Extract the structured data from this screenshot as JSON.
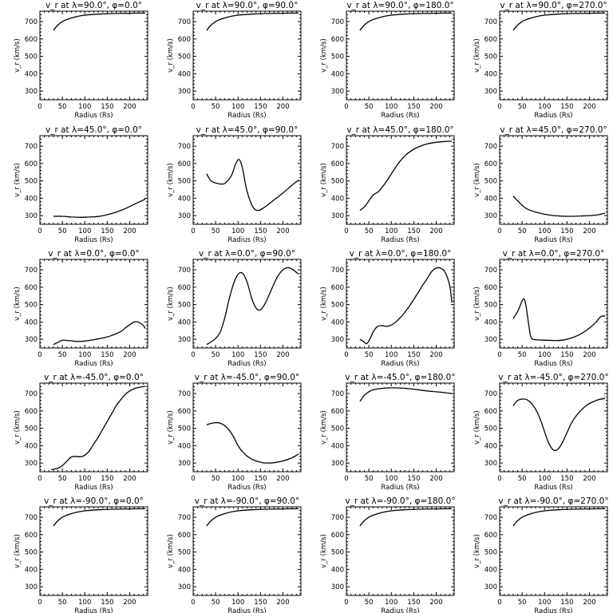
{
  "chart_data": [
    {
      "type": "line",
      "title": "v_r at λ=90.0°, φ=0.0°",
      "xlabel": "Radius (Rs)",
      "ylabel": "v_r (km/s)",
      "xlim": [
        0,
        240
      ],
      "ylim": [
        250,
        760
      ],
      "xticks": [
        0,
        50,
        100,
        150,
        200
      ],
      "yticks": [
        300,
        400,
        500,
        600,
        700
      ],
      "x": [
        30,
        40,
        50,
        60,
        80,
        100,
        130,
        160,
        200,
        235
      ],
      "y": [
        650,
        680,
        700,
        712,
        728,
        737,
        743,
        746,
        748,
        749
      ]
    },
    {
      "type": "line",
      "title": "v_r at λ=90.0°, φ=90.0°",
      "xlabel": "Radius (Rs)",
      "ylabel": "v_r (km/s)",
      "xlim": [
        0,
        240
      ],
      "ylim": [
        250,
        760
      ],
      "xticks": [
        0,
        50,
        100,
        150,
        200
      ],
      "yticks": [
        300,
        400,
        500,
        600,
        700
      ],
      "x": [
        30,
        40,
        50,
        60,
        80,
        100,
        130,
        160,
        200,
        235
      ],
      "y": [
        650,
        680,
        700,
        712,
        728,
        737,
        743,
        746,
        748,
        749
      ]
    },
    {
      "type": "line",
      "title": "v_r at λ=90.0°, φ=180.0°",
      "xlabel": "Radius (Rs)",
      "ylabel": "v_r (km/s)",
      "xlim": [
        0,
        240
      ],
      "ylim": [
        250,
        760
      ],
      "xticks": [
        0,
        50,
        100,
        150,
        200
      ],
      "yticks": [
        300,
        400,
        500,
        600,
        700
      ],
      "x": [
        30,
        40,
        50,
        60,
        80,
        100,
        130,
        160,
        200,
        235
      ],
      "y": [
        650,
        680,
        700,
        712,
        728,
        737,
        743,
        746,
        748,
        749
      ]
    },
    {
      "type": "line",
      "title": "v_r at λ=90.0°, φ=270.0°",
      "xlabel": "Radius (Rs)",
      "ylabel": "v_r (km/s)",
      "xlim": [
        0,
        240
      ],
      "ylim": [
        250,
        760
      ],
      "xticks": [
        0,
        50,
        100,
        150,
        200
      ],
      "yticks": [
        300,
        400,
        500,
        600,
        700
      ],
      "x": [
        30,
        40,
        50,
        60,
        80,
        100,
        130,
        160,
        200,
        235
      ],
      "y": [
        650,
        680,
        700,
        712,
        728,
        737,
        743,
        746,
        748,
        749
      ]
    },
    {
      "type": "line",
      "title": "v_r at λ=45.0°, φ=0.0°",
      "xlabel": "Radius (Rs)",
      "ylabel": "v_r (km/s)",
      "xlim": [
        0,
        240
      ],
      "ylim": [
        250,
        760
      ],
      "xticks": [
        0,
        50,
        100,
        150,
        200
      ],
      "yticks": [
        300,
        400,
        500,
        600,
        700
      ],
      "x": [
        30,
        50,
        70,
        90,
        110,
        130,
        150,
        170,
        190,
        210,
        235
      ],
      "y": [
        296,
        296,
        292,
        290,
        292,
        295,
        305,
        320,
        340,
        365,
        395
      ]
    },
    {
      "type": "line",
      "title": "v_r at λ=45.0°, φ=90.0°",
      "xlabel": "Radius (Rs)",
      "ylabel": "v_r (km/s)",
      "xlim": [
        0,
        240
      ],
      "ylim": [
        250,
        760
      ],
      "xticks": [
        0,
        50,
        100,
        150,
        200
      ],
      "yticks": [
        300,
        400,
        500,
        600,
        700
      ],
      "x": [
        30,
        40,
        55,
        70,
        85,
        95,
        103,
        110,
        120,
        133,
        145,
        160,
        180,
        200,
        220,
        235
      ],
      "y": [
        540,
        500,
        485,
        485,
        530,
        600,
        622,
        570,
        440,
        350,
        330,
        350,
        390,
        430,
        475,
        505
      ]
    },
    {
      "type": "line",
      "title": "v_r at λ=45.0°, φ=180.0°",
      "xlabel": "Radius (Rs)",
      "ylabel": "v_r (km/s)",
      "xlim": [
        0,
        240
      ],
      "ylim": [
        250,
        760
      ],
      "xticks": [
        0,
        50,
        100,
        150,
        200
      ],
      "yticks": [
        300,
        400,
        500,
        600,
        700
      ],
      "x": [
        30,
        40,
        50,
        60,
        70,
        80,
        90,
        100,
        110,
        120,
        135,
        150,
        165,
        180,
        200,
        220,
        235
      ],
      "y": [
        330,
        350,
        385,
        420,
        435,
        465,
        500,
        540,
        580,
        615,
        655,
        682,
        700,
        713,
        722,
        727,
        728
      ]
    },
    {
      "type": "line",
      "title": "v_r at λ=45.0°, φ=270.0°",
      "xlabel": "Radius (Rs)",
      "ylabel": "v_r (km/s)",
      "xlim": [
        0,
        240
      ],
      "ylim": [
        250,
        760
      ],
      "xticks": [
        0,
        50,
        100,
        150,
        200
      ],
      "yticks": [
        300,
        400,
        500,
        600,
        700
      ],
      "x": [
        30,
        40,
        50,
        60,
        80,
        100,
        120,
        140,
        160,
        180,
        200,
        220,
        235
      ],
      "y": [
        412,
        385,
        360,
        340,
        320,
        308,
        300,
        297,
        296,
        298,
        300,
        305,
        315
      ]
    },
    {
      "type": "line",
      "title": "v_r at λ=0.0°, φ=0.0°",
      "xlabel": "Radius (Rs)",
      "ylabel": "v_r (km/s)",
      "xlim": [
        0,
        240
      ],
      "ylim": [
        250,
        760
      ],
      "xticks": [
        0,
        50,
        100,
        150,
        200
      ],
      "yticks": [
        300,
        400,
        500,
        600,
        700
      ],
      "x": [
        30,
        40,
        50,
        60,
        70,
        80,
        100,
        120,
        140,
        160,
        180,
        195,
        210,
        220,
        230,
        235
      ],
      "y": [
        270,
        282,
        295,
        293,
        292,
        288,
        290,
        298,
        308,
        322,
        345,
        375,
        400,
        398,
        380,
        362
      ]
    },
    {
      "type": "line",
      "title": "v_r at λ=0.0°, φ=90.0°",
      "xlabel": "Radius (Rs)",
      "ylabel": "v_r (km/s)",
      "xlim": [
        0,
        240
      ],
      "ylim": [
        250,
        760
      ],
      "xticks": [
        0,
        50,
        100,
        150,
        200
      ],
      "yticks": [
        300,
        400,
        500,
        600,
        700
      ],
      "x": [
        30,
        40,
        50,
        60,
        70,
        80,
        90,
        100,
        110,
        120,
        130,
        140,
        150,
        160,
        170,
        180,
        190,
        200,
        210,
        220,
        230,
        235
      ],
      "y": [
        270,
        285,
        305,
        340,
        420,
        530,
        620,
        675,
        680,
        630,
        540,
        480,
        470,
        505,
        560,
        620,
        670,
        700,
        712,
        705,
        685,
        675
      ]
    },
    {
      "type": "line",
      "title": "v_r at λ=0.0°, φ=180.0°",
      "xlabel": "Radius (Rs)",
      "ylabel": "v_r (km/s)",
      "xlim": [
        0,
        240
      ],
      "ylim": [
        250,
        760
      ],
      "xticks": [
        0,
        50,
        100,
        150,
        200
      ],
      "yticks": [
        300,
        400,
        500,
        600,
        700
      ],
      "x": [
        30,
        37,
        45,
        52,
        60,
        70,
        80,
        90,
        100,
        110,
        120,
        130,
        140,
        150,
        160,
        170,
        180,
        190,
        200,
        210,
        220,
        230,
        235
      ],
      "y": [
        300,
        290,
        275,
        300,
        345,
        375,
        378,
        375,
        382,
        400,
        425,
        455,
        490,
        530,
        570,
        612,
        650,
        690,
        710,
        710,
        685,
        610,
        510
      ]
    },
    {
      "type": "line",
      "title": "v_r at λ=0.0°, φ=270.0°",
      "xlabel": "Radius (Rs)",
      "ylabel": "v_r (km/s)",
      "xlim": [
        0,
        240
      ],
      "ylim": [
        250,
        760
      ],
      "xticks": [
        0,
        50,
        100,
        150,
        200
      ],
      "yticks": [
        300,
        400,
        500,
        600,
        700
      ],
      "x": [
        30,
        40,
        48,
        52,
        56,
        60,
        65,
        70,
        80,
        100,
        120,
        140,
        160,
        180,
        200,
        215,
        225,
        235
      ],
      "y": [
        420,
        460,
        510,
        530,
        525,
        470,
        380,
        310,
        298,
        295,
        293,
        295,
        308,
        330,
        365,
        400,
        430,
        435
      ]
    },
    {
      "type": "line",
      "title": "v_r at λ=-45.0°, φ=0.0°",
      "xlabel": "Radius (Rs)",
      "ylabel": "v_r (km/s)",
      "xlim": [
        0,
        240
      ],
      "ylim": [
        250,
        760
      ],
      "xticks": [
        0,
        50,
        100,
        150,
        200
      ],
      "yticks": [
        300,
        400,
        500,
        600,
        700
      ],
      "x": [
        25,
        40,
        50,
        60,
        70,
        80,
        90,
        100,
        110,
        120,
        130,
        140,
        150,
        160,
        170,
        180,
        190,
        200,
        210,
        220,
        235
      ],
      "y": [
        262,
        270,
        285,
        310,
        335,
        338,
        336,
        345,
        370,
        410,
        450,
        495,
        540,
        585,
        630,
        665,
        695,
        715,
        728,
        735,
        742
      ]
    },
    {
      "type": "line",
      "title": "v_r at λ=-45.0°, φ=90.0°",
      "xlabel": "Radius (Rs)",
      "ylabel": "v_r (km/s)",
      "xlim": [
        0,
        240
      ],
      "ylim": [
        250,
        760
      ],
      "xticks": [
        0,
        50,
        100,
        150,
        200
      ],
      "yticks": [
        300,
        400,
        500,
        600,
        700
      ],
      "x": [
        30,
        40,
        50,
        60,
        70,
        80,
        90,
        100,
        110,
        120,
        130,
        140,
        150,
        160,
        180,
        200,
        220,
        235
      ],
      "y": [
        520,
        528,
        532,
        530,
        515,
        490,
        450,
        400,
        365,
        340,
        323,
        312,
        305,
        300,
        302,
        312,
        330,
        352
      ]
    },
    {
      "type": "line",
      "title": "v_r at λ=-45.0°, φ=180.0°",
      "xlabel": "Radius (Rs)",
      "ylabel": "v_r (km/s)",
      "xlim": [
        0,
        240
      ],
      "ylim": [
        250,
        760
      ],
      "xticks": [
        0,
        50,
        100,
        150,
        200
      ],
      "yticks": [
        300,
        400,
        500,
        600,
        700
      ],
      "x": [
        30,
        40,
        50,
        60,
        80,
        100,
        120,
        140,
        160,
        180,
        200,
        220,
        235
      ],
      "y": [
        655,
        690,
        710,
        722,
        730,
        733,
        732,
        728,
        722,
        715,
        710,
        705,
        700
      ]
    },
    {
      "type": "line",
      "title": "v_r at λ=-45.0°, φ=270.0°",
      "xlabel": "Radius (Rs)",
      "ylabel": "v_r (km/s)",
      "xlim": [
        0,
        240
      ],
      "ylim": [
        250,
        760
      ],
      "xticks": [
        0,
        50,
        100,
        150,
        200
      ],
      "yticks": [
        300,
        400,
        500,
        600,
        700
      ],
      "x": [
        30,
        40,
        50,
        60,
        70,
        80,
        90,
        100,
        110,
        120,
        130,
        140,
        150,
        160,
        170,
        180,
        190,
        200,
        210,
        220,
        235
      ],
      "y": [
        630,
        660,
        668,
        665,
        645,
        610,
        555,
        480,
        410,
        375,
        380,
        420,
        475,
        530,
        570,
        600,
        625,
        643,
        655,
        665,
        672
      ]
    },
    {
      "type": "line",
      "title": "v_r at λ=-90.0°, φ=0.0°",
      "xlabel": "Radius (Rs)",
      "ylabel": "v_r (km/s)",
      "xlim": [
        0,
        240
      ],
      "ylim": [
        250,
        760
      ],
      "xticks": [
        0,
        50,
        100,
        150,
        200
      ],
      "yticks": [
        300,
        400,
        500,
        600,
        700
      ],
      "x": [
        30,
        40,
        50,
        60,
        80,
        100,
        130,
        160,
        200,
        235
      ],
      "y": [
        650,
        680,
        700,
        712,
        728,
        737,
        743,
        746,
        748,
        749
      ]
    },
    {
      "type": "line",
      "title": "v_r at λ=-90.0°, φ=90.0°",
      "xlabel": "Radius (Rs)",
      "ylabel": "v_r (km/s)",
      "xlim": [
        0,
        240
      ],
      "ylim": [
        250,
        760
      ],
      "xticks": [
        0,
        50,
        100,
        150,
        200
      ],
      "yticks": [
        300,
        400,
        500,
        600,
        700
      ],
      "x": [
        30,
        40,
        50,
        60,
        80,
        100,
        130,
        160,
        200,
        235
      ],
      "y": [
        650,
        680,
        700,
        712,
        728,
        737,
        743,
        746,
        748,
        749
      ]
    },
    {
      "type": "line",
      "title": "v_r at λ=-90.0°, φ=180.0°",
      "xlabel": "Radius (Rs)",
      "ylabel": "v_r (km/s)",
      "xlim": [
        0,
        240
      ],
      "ylim": [
        250,
        760
      ],
      "xticks": [
        0,
        50,
        100,
        150,
        200
      ],
      "yticks": [
        300,
        400,
        500,
        600,
        700
      ],
      "x": [
        30,
        40,
        50,
        60,
        80,
        100,
        130,
        160,
        200,
        235
      ],
      "y": [
        650,
        680,
        700,
        712,
        728,
        737,
        743,
        746,
        748,
        749
      ]
    },
    {
      "type": "line",
      "title": "v_r at λ=-90.0°, φ=270.0°",
      "xlabel": "Radius (Rs)",
      "ylabel": "v_r (km/s)",
      "xlim": [
        0,
        240
      ],
      "ylim": [
        250,
        760
      ],
      "xticks": [
        0,
        50,
        100,
        150,
        200
      ],
      "yticks": [
        300,
        400,
        500,
        600,
        700
      ],
      "x": [
        30,
        40,
        50,
        60,
        80,
        100,
        130,
        160,
        200,
        235
      ],
      "y": [
        650,
        680,
        700,
        712,
        728,
        737,
        743,
        746,
        748,
        749
      ]
    }
  ]
}
